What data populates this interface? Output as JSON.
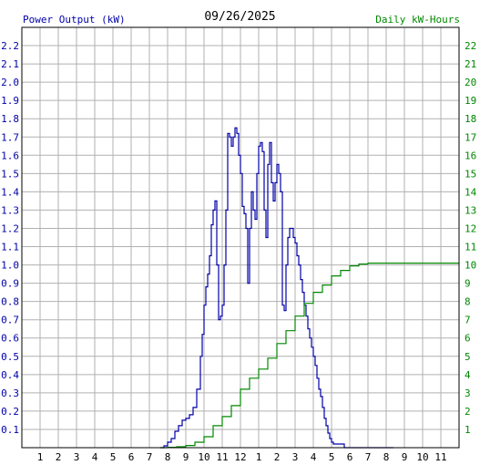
{
  "chart_data": {
    "type": "line",
    "title": "09/26/2025",
    "left_axis_label": "Power Output (kW)",
    "right_axis_label": "Daily kW-Hours",
    "x_tick_labels": [
      "1",
      "2",
      "3",
      "4",
      "5",
      "6",
      "7",
      "8",
      "9",
      "10",
      "11",
      "12",
      "1",
      "2",
      "3",
      "4",
      "5",
      "6",
      "7",
      "8",
      "9",
      "10",
      "11"
    ],
    "x_range_hours": [
      0,
      24
    ],
    "ylim_left": [
      0,
      2.3
    ],
    "ylim_right": [
      0,
      23
    ],
    "y_left_ticks": [
      "0.1",
      "0.2",
      "0.3",
      "0.4",
      "0.5",
      "0.6",
      "0.7",
      "0.8",
      "0.9",
      "1.0",
      "1.1",
      "1.2",
      "1.3",
      "1.4",
      "1.5",
      "1.6",
      "1.7",
      "1.8",
      "1.9",
      "2.0",
      "2.1",
      "2.2"
    ],
    "y_right_ticks": [
      "1",
      "2",
      "3",
      "4",
      "5",
      "6",
      "7",
      "8",
      "9",
      "10",
      "11",
      "12",
      "13",
      "14",
      "15",
      "16",
      "17",
      "18",
      "19",
      "20",
      "21",
      "22"
    ],
    "grid": true,
    "colors": {
      "power": "#0000aa",
      "energy": "#008800",
      "grid": "#b0b0b0",
      "left_axis_text": "#0000aa",
      "right_axis_text": "#008800"
    },
    "series": [
      {
        "name": "Power Output (kW)",
        "axis": "left",
        "x": [
          7.6,
          7.8,
          8.0,
          8.2,
          8.4,
          8.6,
          8.8,
          9.0,
          9.2,
          9.4,
          9.6,
          9.8,
          9.9,
          10.0,
          10.1,
          10.2,
          10.3,
          10.4,
          10.5,
          10.6,
          10.7,
          10.8,
          10.9,
          11.0,
          11.1,
          11.2,
          11.3,
          11.4,
          11.5,
          11.6,
          11.7,
          11.8,
          11.9,
          12.0,
          12.1,
          12.2,
          12.3,
          12.4,
          12.5,
          12.6,
          12.7,
          12.8,
          12.9,
          13.0,
          13.1,
          13.2,
          13.3,
          13.4,
          13.5,
          13.6,
          13.7,
          13.8,
          13.9,
          14.0,
          14.1,
          14.2,
          14.3,
          14.4,
          14.5,
          14.6,
          14.7,
          14.8,
          14.9,
          15.0,
          15.1,
          15.2,
          15.3,
          15.4,
          15.5,
          15.6,
          15.7,
          15.8,
          15.9,
          16.0,
          16.1,
          16.2,
          16.3,
          16.4,
          16.5,
          16.6,
          16.7,
          16.8,
          16.9,
          17.0,
          17.1,
          17.2,
          17.3,
          17.4,
          17.5,
          17.6,
          17.7,
          17.8,
          17.9,
          18.0,
          18.1,
          18.2,
          18.3,
          18.4,
          18.5,
          18.6,
          18.8,
          19.0,
          19.2,
          19.4,
          19.6,
          19.8,
          20.0,
          20.2,
          20.4
        ],
        "values": [
          0.0,
          0.01,
          0.03,
          0.05,
          0.09,
          0.12,
          0.15,
          0.16,
          0.18,
          0.22,
          0.32,
          0.5,
          0.62,
          0.78,
          0.88,
          0.95,
          1.05,
          1.22,
          1.3,
          1.35,
          1.0,
          0.7,
          0.72,
          0.78,
          1.0,
          1.3,
          1.72,
          1.7,
          1.65,
          1.7,
          1.75,
          1.72,
          1.6,
          1.5,
          1.32,
          1.28,
          1.2,
          0.9,
          1.2,
          1.4,
          1.3,
          1.25,
          1.5,
          1.65,
          1.67,
          1.62,
          1.3,
          1.15,
          1.55,
          1.67,
          1.45,
          1.35,
          1.45,
          1.55,
          1.5,
          1.4,
          0.78,
          0.75,
          1.0,
          1.15,
          1.2,
          1.2,
          1.15,
          1.12,
          1.05,
          1.0,
          0.92,
          0.85,
          0.78,
          0.72,
          0.65,
          0.6,
          0.55,
          0.5,
          0.45,
          0.38,
          0.32,
          0.28,
          0.22,
          0.16,
          0.12,
          0.08,
          0.05,
          0.03,
          0.02,
          0.02,
          0.02,
          0.02,
          0.02,
          0.02,
          0.0,
          0.0,
          0.0,
          0.0,
          0.0,
          0.0,
          0.0,
          0.0,
          0.0,
          0.0,
          0.0,
          0.0,
          0.0,
          0.0,
          0.0,
          0.0,
          0.0,
          0.0,
          0.0
        ]
      },
      {
        "name": "Daily kW-Hours",
        "axis": "right",
        "x": [
          7.6,
          8.0,
          8.5,
          9.0,
          9.5,
          10.0,
          10.5,
          11.0,
          11.5,
          12.0,
          12.5,
          13.0,
          13.5,
          14.0,
          14.5,
          15.0,
          15.5,
          16.0,
          16.5,
          17.0,
          17.5,
          18.0,
          18.5,
          19.0,
          20.0,
          21.0,
          22.0,
          23.0,
          24.0
        ],
        "values": [
          0.0,
          0.02,
          0.05,
          0.12,
          0.3,
          0.6,
          1.2,
          1.7,
          2.3,
          3.2,
          3.8,
          4.3,
          4.9,
          5.7,
          6.4,
          7.2,
          7.9,
          8.5,
          8.9,
          9.4,
          9.7,
          9.95,
          10.05,
          10.1,
          10.1,
          10.1,
          10.1,
          10.1,
          10.1
        ]
      }
    ]
  }
}
